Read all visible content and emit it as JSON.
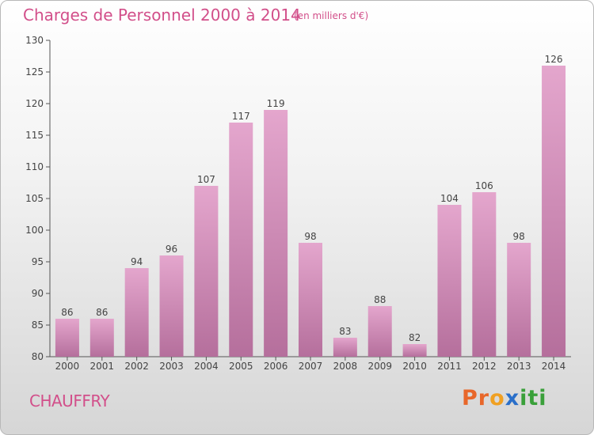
{
  "header": {
    "title": "Charges de Personnel 2000 à 2014",
    "subtitle": "(en milliers d'€)"
  },
  "footer": {
    "commune": "CHAUFFRY",
    "logo_letters": [
      "P",
      "r",
      "o",
      "x",
      "i",
      "t",
      "i"
    ]
  },
  "colors": {
    "accent": "#d24f8a",
    "bar_top": "#e4a6cd",
    "bar_bottom": "#b56f9c",
    "logo": [
      "#e8672a",
      "#e8672a",
      "#f0a022",
      "#2a6fc9",
      "#3aa03a",
      "#3aa03a",
      "#3aa03a"
    ]
  },
  "chart_data": {
    "type": "bar",
    "categories": [
      "2000",
      "2001",
      "2002",
      "2003",
      "2004",
      "2005",
      "2006",
      "2007",
      "2008",
      "2009",
      "2010",
      "2011",
      "2012",
      "2013",
      "2014"
    ],
    "values": [
      86,
      86,
      94,
      96,
      107,
      117,
      119,
      98,
      83,
      88,
      82,
      104,
      106,
      98,
      126
    ],
    "ylim": [
      80,
      130
    ],
    "yticks": [
      80,
      85,
      90,
      95,
      100,
      105,
      110,
      115,
      120,
      125,
      130
    ],
    "grid": false
  }
}
